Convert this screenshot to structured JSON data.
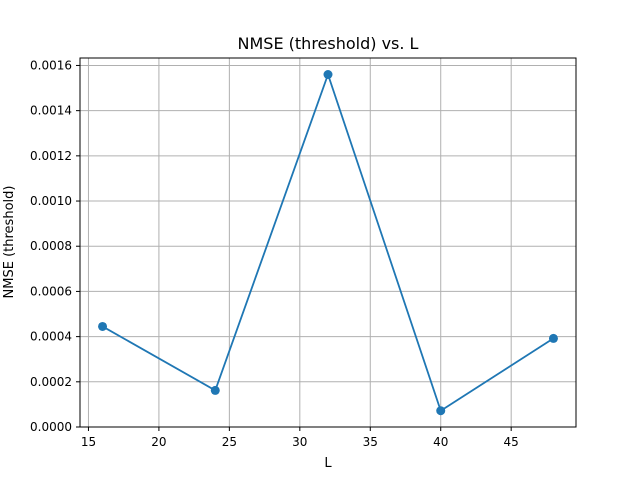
{
  "chart_data": {
    "type": "line",
    "title": "NMSE (threshold) vs. L",
    "xlabel": "L",
    "ylabel": "NMSE (threshold)",
    "x": [
      16,
      24,
      32,
      40,
      48
    ],
    "series": [
      {
        "values": [
          0.000445,
          0.000162,
          0.00156,
          7.2e-05,
          0.000392
        ],
        "color": "#1f77b4",
        "marker": "circle"
      }
    ],
    "xlim": [
      14.4,
      49.6
    ],
    "ylim": [
      0,
      0.001633
    ],
    "xticks": [
      15,
      20,
      25,
      30,
      35,
      40,
      45
    ],
    "yticks": [
      0.0,
      0.0002,
      0.0004,
      0.0006,
      0.0008,
      0.001,
      0.0012,
      0.0014,
      0.0016
    ],
    "ytick_labels": [
      "0.0000",
      "0.0002",
      "0.0004",
      "0.0006",
      "0.0008",
      "0.0010",
      "0.0012",
      "0.0014",
      "0.0016"
    ],
    "grid": true,
    "grid_color": "#b0b0b0"
  }
}
